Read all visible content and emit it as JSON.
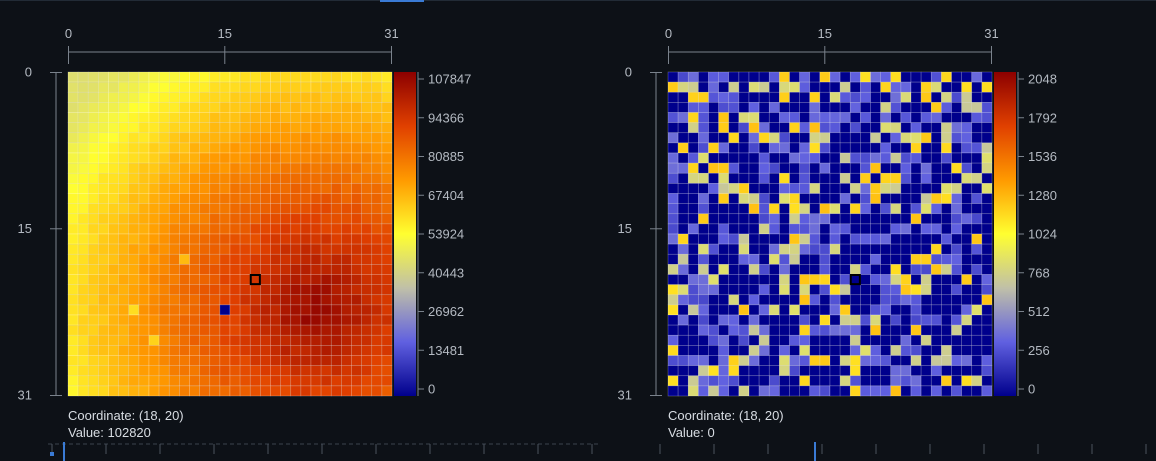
{
  "chart_data": [
    {
      "type": "heatmap",
      "grid_size": [
        32,
        32
      ],
      "x_ticks": [
        "0",
        "15",
        "31"
      ],
      "y_ticks": [
        "0",
        "15",
        "31"
      ],
      "colorbar_ticks": [
        "107847",
        "94366",
        "80885",
        "67404",
        "53924",
        "40443",
        "26962",
        "13481",
        "0"
      ],
      "zlim": [
        0,
        107847
      ],
      "colormap": [
        "#00008c",
        "#6060e0",
        "#c0c0a8",
        "#ffff30",
        "#ff9a00",
        "#e04000",
        "#8c0000"
      ],
      "pattern": "radial",
      "selected_cell": [
        18,
        20
      ],
      "highlight_cells": [
        {
          "x": 6,
          "y": 23,
          "v": 60000
        },
        {
          "x": 8,
          "y": 26,
          "v": 62000
        },
        {
          "x": 11,
          "y": 18,
          "v": 66000
        },
        {
          "x": 15,
          "y": 23,
          "v": 0
        }
      ],
      "coordinate_text": "Coordinate: (18, 20)",
      "value_text": "Value: 102820"
    },
    {
      "type": "heatmap",
      "grid_size": [
        32,
        32
      ],
      "x_ticks": [
        "0",
        "15",
        "31"
      ],
      "y_ticks": [
        "0",
        "15",
        "31"
      ],
      "colorbar_ticks": [
        "2048",
        "1792",
        "1536",
        "1280",
        "1024",
        "768",
        "512",
        "256",
        "0"
      ],
      "zlim": [
        0,
        2048
      ],
      "colormap": [
        "#00008c",
        "#6060e0",
        "#c0c0a8",
        "#ffff30",
        "#ff9a00",
        "#e04000",
        "#8c0000"
      ],
      "pattern": "sparse",
      "selected_cell": [
        18,
        20
      ],
      "coordinate_text": "Coordinate: (18, 20)",
      "value_text": "Value: 0"
    }
  ]
}
